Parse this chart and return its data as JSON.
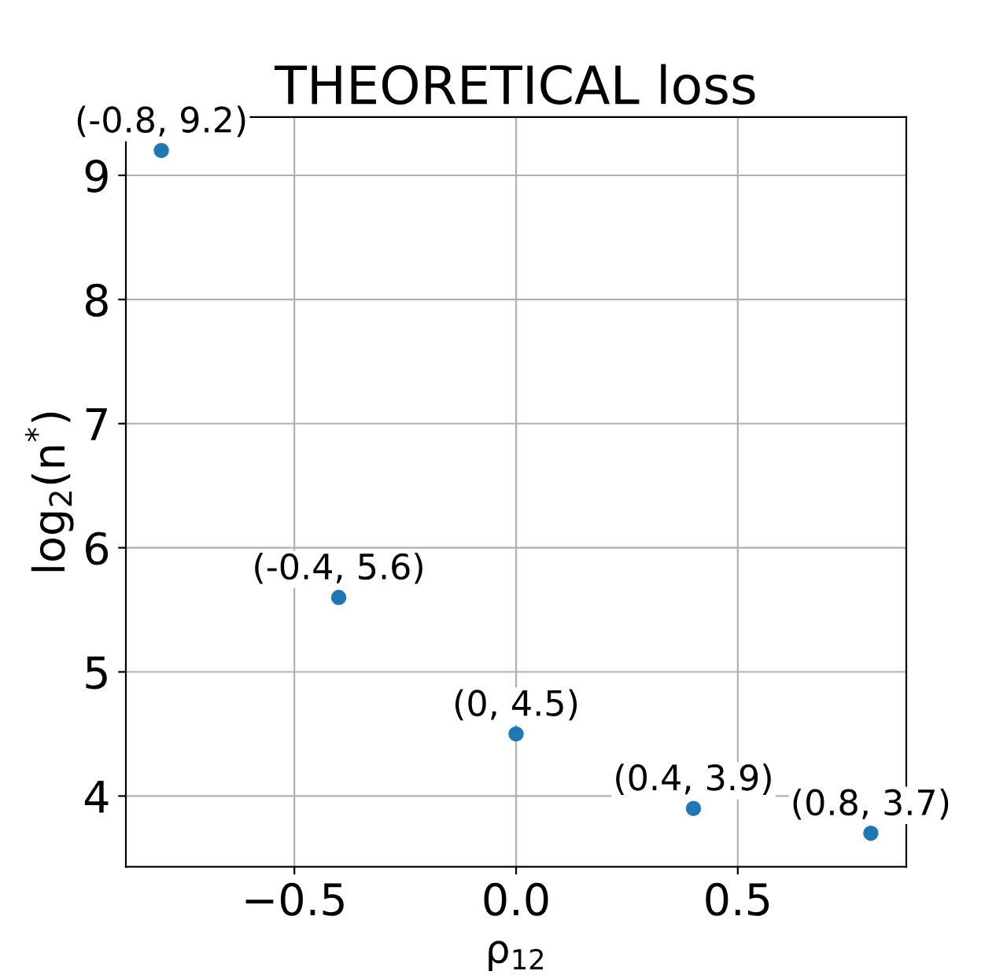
{
  "chart_data": {
    "type": "scatter",
    "title": "THEORETICAL loss",
    "xlabel": "ρ$_{12}$",
    "ylabel": "log$_{2}$(n$^{*}$)",
    "x": [
      -0.8,
      -0.4,
      0,
      0.4,
      0.8
    ],
    "series": [
      {
        "color": "#1f77b4",
        "values": [
          9.2,
          5.6,
          4.5,
          3.9,
          3.7
        ],
        "value_labels": [
          "(-0.8, 9.2)",
          "(-0.4, 5.6)",
          "(0, 4.5)",
          "(0.4, 3.9)",
          "(0.8, 3.7)"
        ]
      }
    ],
    "xlim": [
      -0.88,
      0.88
    ],
    "ylim": [
      3.43,
      9.47
    ],
    "xticks": [
      {
        "value": -0.5,
        "label": "−0.5"
      },
      {
        "value": 0,
        "label": "0.0"
      },
      {
        "value": 0.5,
        "label": "0.5"
      }
    ],
    "yticks": [
      4,
      5,
      6,
      7,
      8,
      9
    ],
    "grid": true,
    "marker": "circle"
  }
}
